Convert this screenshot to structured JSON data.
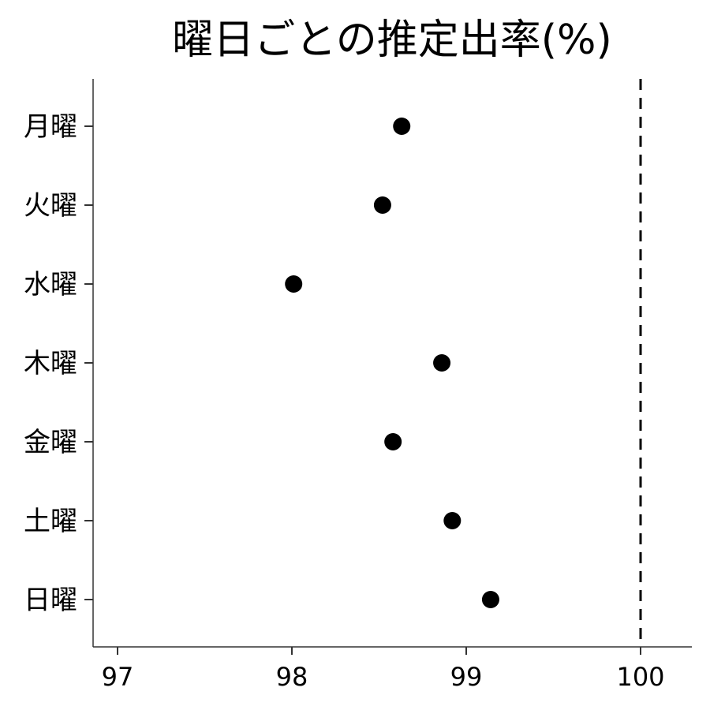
{
  "chart_data": {
    "type": "scatter",
    "title": "曜日ごとの推定出率(%)",
    "xlabel": "",
    "ylabel": "",
    "xlim": [
      96.85,
      100.3
    ],
    "x_ticks": [
      "97",
      "98",
      "99",
      "100"
    ],
    "categories": [
      "月曜",
      "火曜",
      "水曜",
      "木曜",
      "金曜",
      "土曜",
      "日曜"
    ],
    "values": [
      98.63,
      98.52,
      98.01,
      98.86,
      98.58,
      98.92,
      99.14
    ],
    "reference_line": {
      "x": 100,
      "style": "dashed"
    },
    "grid": false,
    "legend": "none"
  }
}
